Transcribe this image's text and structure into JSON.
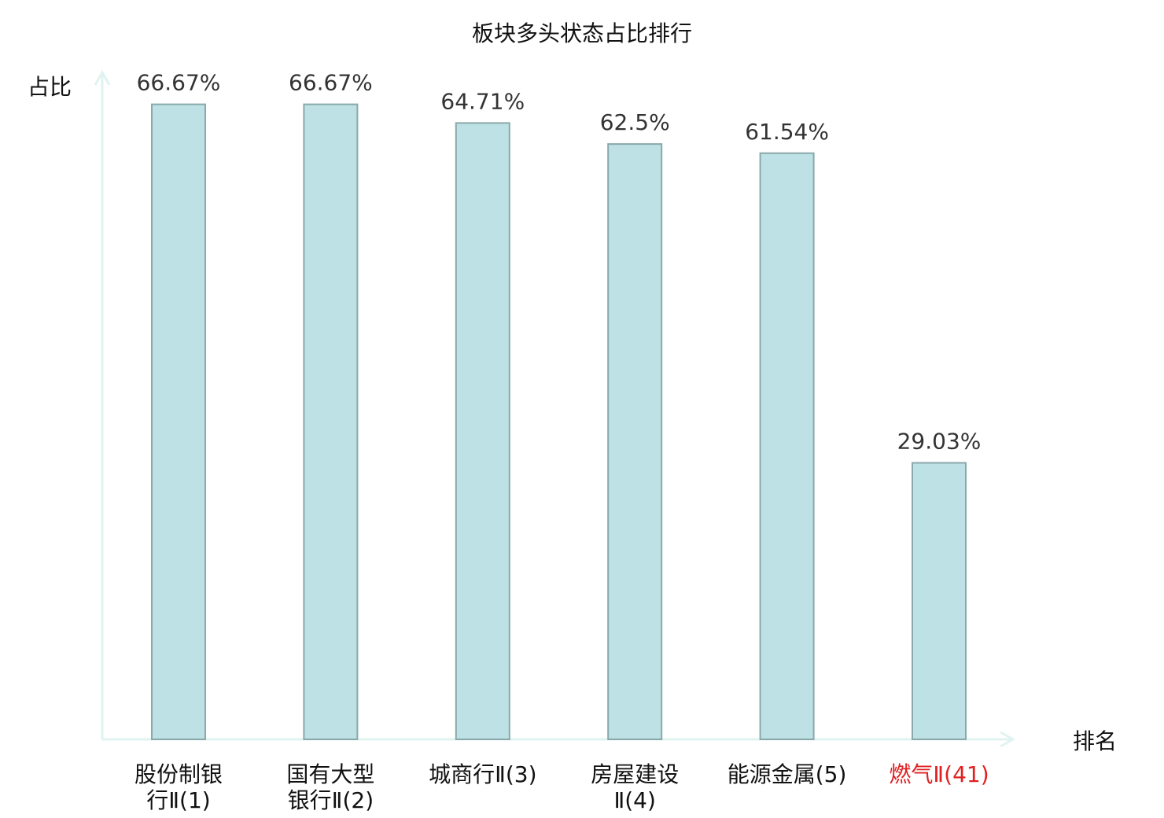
{
  "chart_data": {
    "type": "bar",
    "title": "板块多头状态占比排行",
    "xlabel": "排名",
    "ylabel": "占比",
    "categories": [
      [
        "股份制银",
        "行Ⅱ(1)"
      ],
      [
        "国有大型",
        "银行Ⅱ(2)"
      ],
      [
        "城商行Ⅱ(3)"
      ],
      [
        "房屋建设",
        "Ⅱ(4)"
      ],
      [
        "能源金属(5)"
      ],
      [
        "燃气Ⅱ(41)"
      ]
    ],
    "values": [
      66.67,
      66.67,
      64.71,
      62.5,
      61.54,
      29.03
    ],
    "value_labels": [
      "66.67%",
      "66.67%",
      "64.71%",
      "62.5%",
      "61.54%",
      "29.03%"
    ],
    "ylim": [
      0,
      70
    ],
    "grid": false,
    "colors": {
      "bar_fill": "#bde1e4",
      "bar_stroke": "#8aa8aa",
      "axis": "#e0f3f0",
      "label_default": "#111111",
      "label_highlight": "#e02020"
    },
    "highlight_index": 5
  }
}
